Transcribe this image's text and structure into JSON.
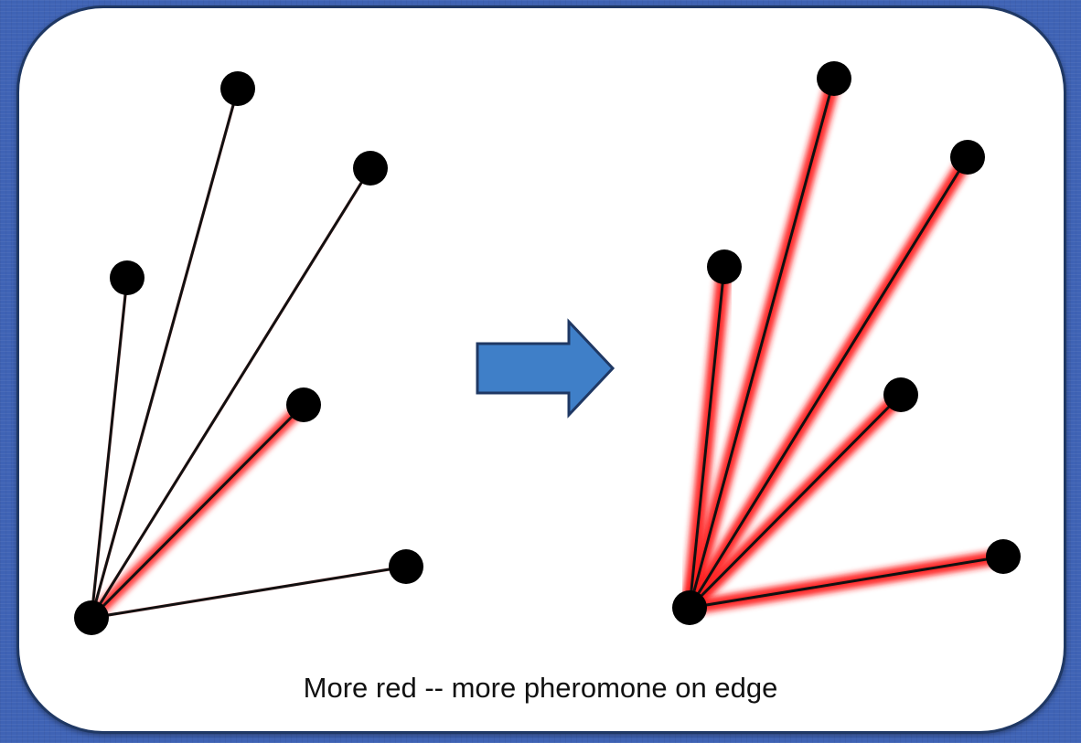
{
  "caption": "More red -- more pheromone on edge",
  "colors": {
    "background": "#3f63b5",
    "panel": "#ffffff",
    "panel_border": "#1f3864",
    "node": "#000000",
    "edge": "#111111",
    "pheromone": "#ff1a1a",
    "arrow_fill": "#3f7fc8",
    "arrow_stroke": "#1f3864"
  },
  "graphs": [
    {
      "name": "before",
      "hub": "A",
      "nodes": [
        {
          "id": "A"
        },
        {
          "id": "B"
        },
        {
          "id": "C"
        },
        {
          "id": "D"
        },
        {
          "id": "E"
        },
        {
          "id": "F"
        }
      ],
      "edges": [
        {
          "to": "B",
          "pheromone": 0.1
        },
        {
          "to": "C",
          "pheromone": 0.1
        },
        {
          "to": "D",
          "pheromone": 0.1
        },
        {
          "to": "E",
          "pheromone": 0.85
        },
        {
          "to": "F",
          "pheromone": 0.1
        }
      ]
    },
    {
      "name": "after",
      "hub": "A",
      "nodes": [
        {
          "id": "A"
        },
        {
          "id": "B"
        },
        {
          "id": "C"
        },
        {
          "id": "D"
        },
        {
          "id": "E"
        },
        {
          "id": "F"
        }
      ],
      "edges": [
        {
          "to": "B",
          "pheromone": 1.0
        },
        {
          "to": "C",
          "pheromone": 1.0
        },
        {
          "to": "D",
          "pheromone": 1.0
        },
        {
          "to": "E",
          "pheromone": 1.0
        },
        {
          "to": "F",
          "pheromone": 1.0
        }
      ]
    }
  ]
}
